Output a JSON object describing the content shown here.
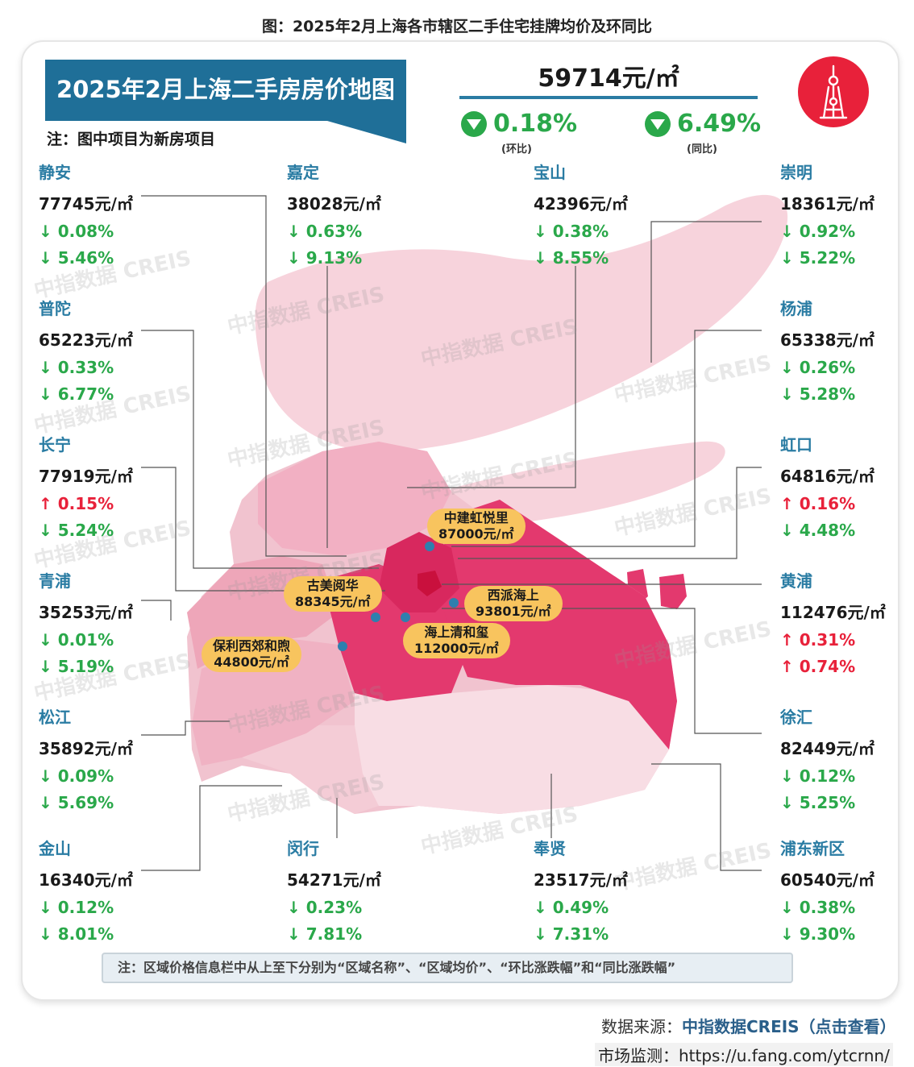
{
  "caption": "图：2025年2月上海各市辖区二手住宅挂牌均价及环同比",
  "banner": {
    "title": "2025年2月上海二手房房价地图",
    "note": "注：图中项目为新房项目"
  },
  "summary": {
    "avg_price": "59714元/㎡",
    "mom": {
      "value": "0.18%",
      "label": "(环比)",
      "direction": "down"
    },
    "yoy": {
      "value": "6.49%",
      "label": "(同比)",
      "direction": "down"
    }
  },
  "logo_icon": "pearl-tower-icon",
  "colors": {
    "accent": "#2a7ca3",
    "down": "#2aa84a",
    "up": "#e8213a",
    "project_tag": "#f8c45e"
  },
  "districts": [
    {
      "name": "静安",
      "price": "77745元/㎡",
      "chg1": "↓ 0.08%",
      "chg2": "↓ 5.46%",
      "dir1": "down",
      "dir2": "down"
    },
    {
      "name": "嘉定",
      "price": "38028元/㎡",
      "chg1": "↓ 0.63%",
      "chg2": "↓ 9.13%",
      "dir1": "down",
      "dir2": "down"
    },
    {
      "name": "宝山",
      "price": "42396元/㎡",
      "chg1": "↓ 0.38%",
      "chg2": "↓ 8.55%",
      "dir1": "down",
      "dir2": "down"
    },
    {
      "name": "崇明",
      "price": "18361元/㎡",
      "chg1": "↓ 0.92%",
      "chg2": "↓ 5.22%",
      "dir1": "down",
      "dir2": "down"
    },
    {
      "name": "普陀",
      "price": "65223元/㎡",
      "chg1": "↓ 0.33%",
      "chg2": "↓ 6.77%",
      "dir1": "down",
      "dir2": "down"
    },
    {
      "name": "杨浦",
      "price": "65338元/㎡",
      "chg1": "↓ 0.26%",
      "chg2": "↓ 5.28%",
      "dir1": "down",
      "dir2": "down"
    },
    {
      "name": "长宁",
      "price": "77919元/㎡",
      "chg1": "↑ 0.15%",
      "chg2": "↓ 5.24%",
      "dir1": "up",
      "dir2": "down"
    },
    {
      "name": "虹口",
      "price": "64816元/㎡",
      "chg1": "↑ 0.16%",
      "chg2": "↓ 4.48%",
      "dir1": "up",
      "dir2": "down"
    },
    {
      "name": "青浦",
      "price": "35253元/㎡",
      "chg1": "↓ 0.01%",
      "chg2": "↓ 5.19%",
      "dir1": "down",
      "dir2": "down"
    },
    {
      "name": "黄浦",
      "price": "112476元/㎡",
      "chg1": "↑ 0.31%",
      "chg2": "↑ 0.74%",
      "dir1": "up",
      "dir2": "up"
    },
    {
      "name": "松江",
      "price": "35892元/㎡",
      "chg1": "↓ 0.09%",
      "chg2": "↓ 5.69%",
      "dir1": "down",
      "dir2": "down"
    },
    {
      "name": "徐汇",
      "price": "82449元/㎡",
      "chg1": "↓ 0.12%",
      "chg2": "↓ 5.25%",
      "dir1": "down",
      "dir2": "down"
    },
    {
      "name": "金山",
      "price": "16340元/㎡",
      "chg1": "↓ 0.12%",
      "chg2": "↓ 8.01%",
      "dir1": "down",
      "dir2": "down"
    },
    {
      "name": "闵行",
      "price": "54271元/㎡",
      "chg1": "↓ 0.23%",
      "chg2": "↓ 7.81%",
      "dir1": "down",
      "dir2": "down"
    },
    {
      "name": "奉贤",
      "price": "23517元/㎡",
      "chg1": "↓ 0.49%",
      "chg2": "↓ 7.31%",
      "dir1": "down",
      "dir2": "down"
    },
    {
      "name": "浦东新区",
      "price": "60540元/㎡",
      "chg1": "↓ 0.38%",
      "chg2": "↓ 9.30%",
      "dir1": "down",
      "dir2": "down"
    }
  ],
  "projects": [
    {
      "name": "中建虹悦里",
      "price": "87000元/㎡"
    },
    {
      "name": "古美阅华",
      "price": "88345元/㎡"
    },
    {
      "name": "西派海上",
      "price": "93801元/㎡"
    },
    {
      "name": "海上清和玺",
      "price": "112000元/㎡"
    },
    {
      "name": "保利西郊和煦",
      "price": "44800元/㎡"
    }
  ],
  "watermark": "中指数据 CREIS",
  "bottom_note": "注：区域价格信息栏中从上至下分别为“区域名称”、“区域均价”、“环比涨跌幅”和“同比涨跌幅”",
  "source": {
    "label": "数据来源：",
    "link": "中指数据CREIS（点击查看）"
  },
  "monitor": "市场监测：https://u.fang.com/ytcrnn/"
}
